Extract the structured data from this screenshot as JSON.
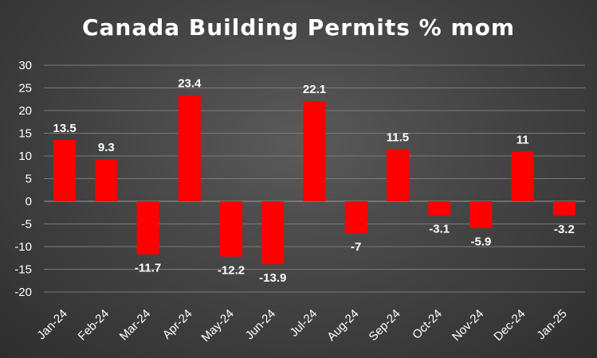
{
  "chart_data": {
    "type": "bar",
    "title": "Canada Building Permits % mom",
    "xlabel": "",
    "ylabel": "",
    "categories": [
      "Jan-24",
      "Feb-24",
      "Mar-24",
      "Apr-24",
      "May-24",
      "Jun-24",
      "Jul-24",
      "Aug-24",
      "Sep-24",
      "Oct-24",
      "Nov-24",
      "Dec-24",
      "Jan-25"
    ],
    "values": [
      13.5,
      9.3,
      -11.7,
      23.4,
      -12.2,
      -13.9,
      22.1,
      -7,
      11.5,
      -3.1,
      -5.9,
      11,
      -3.2
    ],
    "data_labels": [
      "13.5",
      "9.3",
      "-11.7",
      "23.4",
      "-12.2",
      "-13.9",
      "22.1",
      "-7",
      "11.5",
      "-3.1",
      "-5.9",
      "11",
      "-3.2"
    ],
    "ylim": [
      -20,
      30
    ],
    "yticks": [
      30,
      25,
      20,
      15,
      10,
      5,
      0,
      -5,
      -10,
      -15,
      -20
    ],
    "grid": true,
    "legend": "none",
    "colors": {
      "bar": "#ff0000",
      "grid": "#7a7a7a",
      "text": "#ffffff"
    }
  }
}
